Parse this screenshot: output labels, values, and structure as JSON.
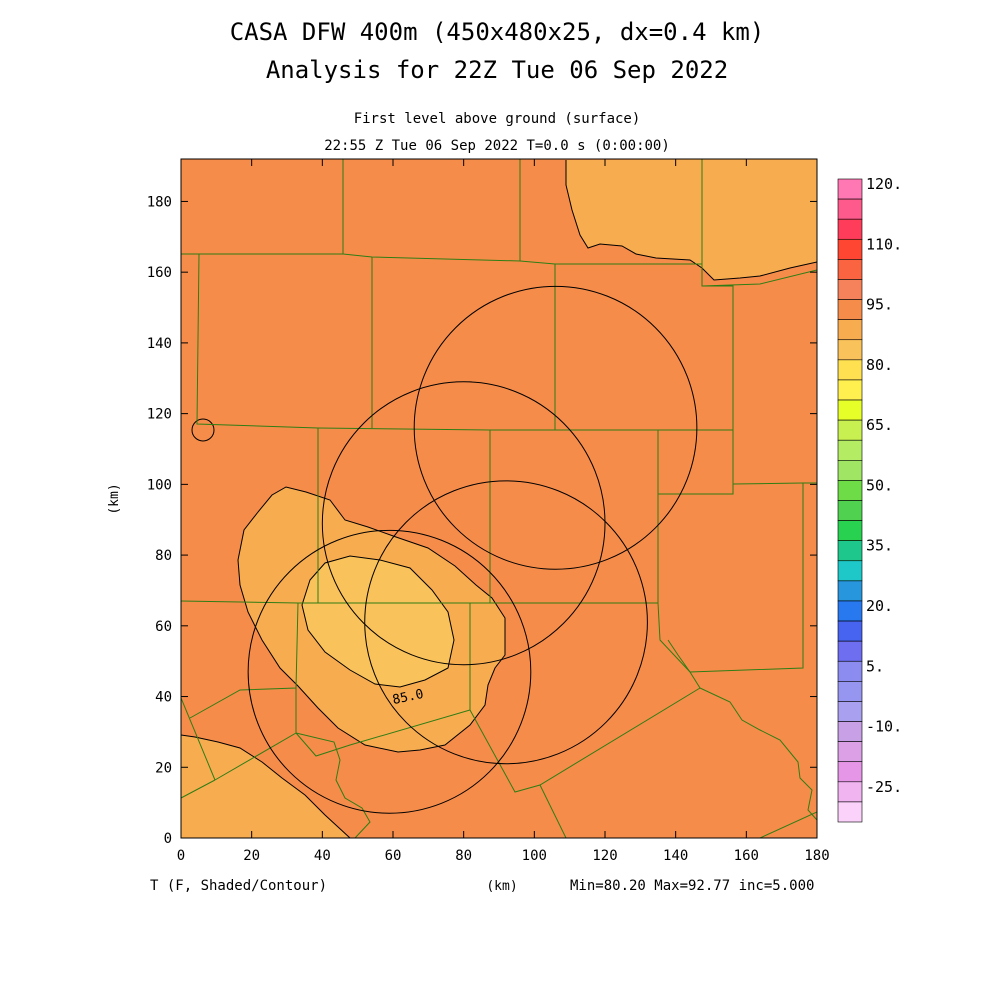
{
  "header": {
    "title_line1": "CASA DFW 400m (450x480x25, dx=0.4 km)",
    "title_line2": "Analysis for 22Z Tue 06 Sep 2022",
    "subtitle_line1": "First level above ground (surface)",
    "subtitle_line2": "22:55 Z Tue 06 Sep 2022   T=0.0 s (0:00:00)"
  },
  "footer": {
    "left": "T (F, Shaded/Contour)",
    "center": "(km)",
    "right": "Min=80.20 Max=92.77 inc=5.000"
  },
  "axes": {
    "ylabel": "(km)",
    "x_ticks": [
      "0",
      "20",
      "40",
      "60",
      "80",
      "100",
      "120",
      "140",
      "160",
      "180"
    ],
    "y_ticks": [
      "0",
      "20",
      "40",
      "60",
      "80",
      "100",
      "120",
      "140",
      "160",
      "180"
    ],
    "xlim": [
      0,
      180
    ],
    "ylim": [
      0,
      192
    ]
  },
  "contour_label": "85.0",
  "colorbar": {
    "labels": [
      "120.",
      "110.",
      "95.",
      "80.",
      "65.",
      "50.",
      "35.",
      "20.",
      "5.",
      "-10.",
      "-25."
    ],
    "colors_top_to_bottom": [
      "#ff78b4",
      "#ff5a8c",
      "#ff3c5a",
      "#ff4632",
      "#fa6440",
      "#f5825a",
      "#f68c4a",
      "#f8ac50",
      "#fac25a",
      "#ffe050",
      "#fff050",
      "#e6ff28",
      "#c8f050",
      "#b4ec64",
      "#a0e664",
      "#6edc46",
      "#50d250",
      "#28d250",
      "#1ec88c",
      "#1ec8c8",
      "#2896dc",
      "#2878f0",
      "#4664f0",
      "#6e6ef0",
      "#8c8cf0",
      "#9696f0",
      "#aaa0f0",
      "#c8a0e6",
      "#dca0e6",
      "#e696e6",
      "#f0b4f0",
      "#fad2fa"
    ]
  },
  "field_colors": {
    "t85_90": "#f68c4a",
    "t80_85_dark": "#f8ac50",
    "t80_85_light": "#fac25a"
  },
  "chart_data": {
    "type": "heatmap",
    "variable": "T (F, Shaded/Contour)",
    "min": 80.2,
    "max": 92.77,
    "contour_interval": 5.0,
    "contour_levels_labeled": [
      85.0
    ],
    "x_range_km": [
      0,
      180
    ],
    "y_range_km": [
      0,
      192
    ],
    "radar_rings_km": [
      {
        "cx": 80,
        "cy": 89,
        "r": 40
      },
      {
        "cx": 106,
        "cy": 116,
        "r": 40
      },
      {
        "cx": 59,
        "cy": 47,
        "r": 40
      },
      {
        "cx": 92,
        "cy": 61,
        "r": 40
      }
    ]
  }
}
